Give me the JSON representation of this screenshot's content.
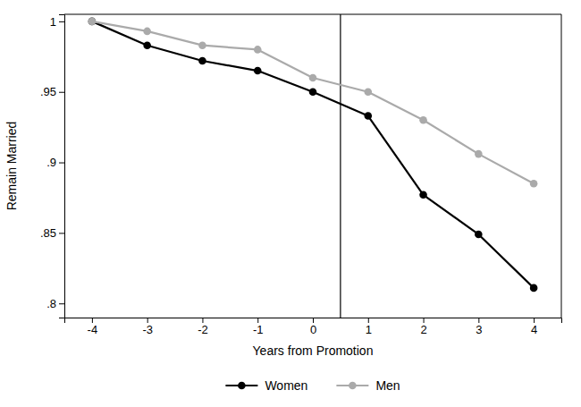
{
  "chart_data": {
    "type": "line",
    "x": [
      -4,
      -3,
      -2,
      -1,
      0,
      1,
      2,
      3,
      4
    ],
    "series": [
      {
        "name": "Women",
        "color": "#000000",
        "marker": "circle",
        "values": [
          1.0,
          0.983,
          0.972,
          0.965,
          0.95,
          0.933,
          0.877,
          0.849,
          0.811
        ]
      },
      {
        "name": "Men",
        "color": "#aaaaaa",
        "marker": "circle",
        "values": [
          1.0,
          0.993,
          0.983,
          0.98,
          0.96,
          0.95,
          0.93,
          0.906,
          0.885
        ]
      }
    ],
    "xlabel": "Years from Promotion",
    "ylabel": "Remain Married",
    "xlim": [
      -4.5,
      4.5
    ],
    "ylim": [
      0.79,
      1.005
    ],
    "xticks": [
      -4,
      -3,
      -2,
      -1,
      0,
      1,
      2,
      3,
      4
    ],
    "yticks": [
      {
        "value": 0.8,
        "label": ".8"
      },
      {
        "value": 0.85,
        "label": ".85"
      },
      {
        "value": 0.9,
        "label": ".9"
      },
      {
        "value": 0.95,
        "label": ".95"
      },
      1
    ],
    "vlines": [
      0.5
    ],
    "legend": "bottom",
    "grid": false
  }
}
